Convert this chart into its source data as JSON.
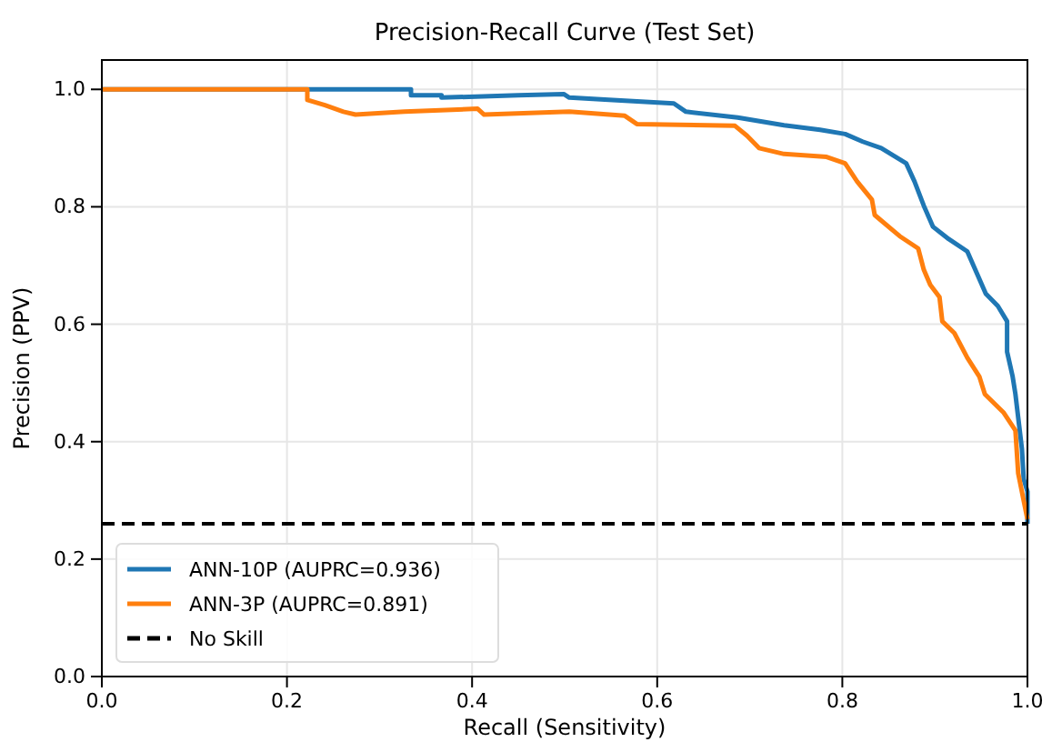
{
  "chart_data": {
    "type": "line",
    "title": "Precision-Recall Curve (Test Set)",
    "xlabel": "Recall (Sensitivity)",
    "ylabel": "Precision (PPV)",
    "xlim": [
      0,
      1
    ],
    "ylim": [
      0,
      1.05
    ],
    "xticks": [
      {
        "value": 0,
        "label": "0.0"
      },
      0.2,
      0.4,
      0.6,
      0.8,
      {
        "value": 1,
        "label": "1.0"
      }
    ],
    "yticks": [
      {
        "value": 0,
        "label": "0.0"
      },
      0.2,
      0.4,
      0.6,
      0.8,
      {
        "value": 1,
        "label": "1.0"
      }
    ],
    "grid": true,
    "legend": "bottom left",
    "line_style": "solid",
    "marker": "none",
    "series": [
      {
        "name": "ANN-10P (AUPRC=0.936)",
        "color": "#1f77b4",
        "x": [
          0,
          0.334,
          0.334,
          0.367,
          0.367,
          0.45,
          0.499,
          0.505,
          0.552,
          0.618,
          0.631,
          0.687,
          0.737,
          0.776,
          0.803,
          0.822,
          0.842,
          0.869,
          0.878,
          0.888,
          0.898,
          0.915,
          0.935,
          0.945,
          0.955,
          0.968,
          0.978,
          0.978,
          0.984,
          0.987,
          0.994,
          0.996,
          1.0,
          1.0
        ],
        "values": [
          1.0,
          1.0,
          0.99,
          0.99,
          0.986,
          0.99,
          0.992,
          0.986,
          0.982,
          0.976,
          0.962,
          0.952,
          0.939,
          0.931,
          0.924,
          0.911,
          0.9,
          0.874,
          0.843,
          0.802,
          0.766,
          0.745,
          0.724,
          0.688,
          0.652,
          0.631,
          0.605,
          0.553,
          0.511,
          0.481,
          0.388,
          0.336,
          0.315,
          0.26
        ]
      },
      {
        "name": "ANN-3P (AUPRC=0.891)",
        "color": "#ff7f0e",
        "x": [
          0,
          0.222,
          0.222,
          0.241,
          0.261,
          0.274,
          0.327,
          0.406,
          0.413,
          0.505,
          0.565,
          0.578,
          0.684,
          0.697,
          0.71,
          0.737,
          0.783,
          0.803,
          0.816,
          0.832,
          0.835,
          0.862,
          0.882,
          0.888,
          0.895,
          0.905,
          0.908,
          0.921,
          0.935,
          0.948,
          0.954,
          0.974,
          0.987,
          0.99,
          1.0
        ],
        "values": [
          1.0,
          1.0,
          0.982,
          0.973,
          0.962,
          0.957,
          0.962,
          0.967,
          0.957,
          0.962,
          0.955,
          0.941,
          0.938,
          0.921,
          0.9,
          0.89,
          0.885,
          0.874,
          0.843,
          0.812,
          0.786,
          0.75,
          0.729,
          0.693,
          0.667,
          0.646,
          0.605,
          0.585,
          0.543,
          0.511,
          0.481,
          0.45,
          0.419,
          0.346,
          0.268
        ]
      }
    ],
    "ref_lines": [
      {
        "axis": "y",
        "value": 0.26,
        "label": "No Skill",
        "color": "#000000",
        "line_style": "dashed"
      }
    ]
  }
}
